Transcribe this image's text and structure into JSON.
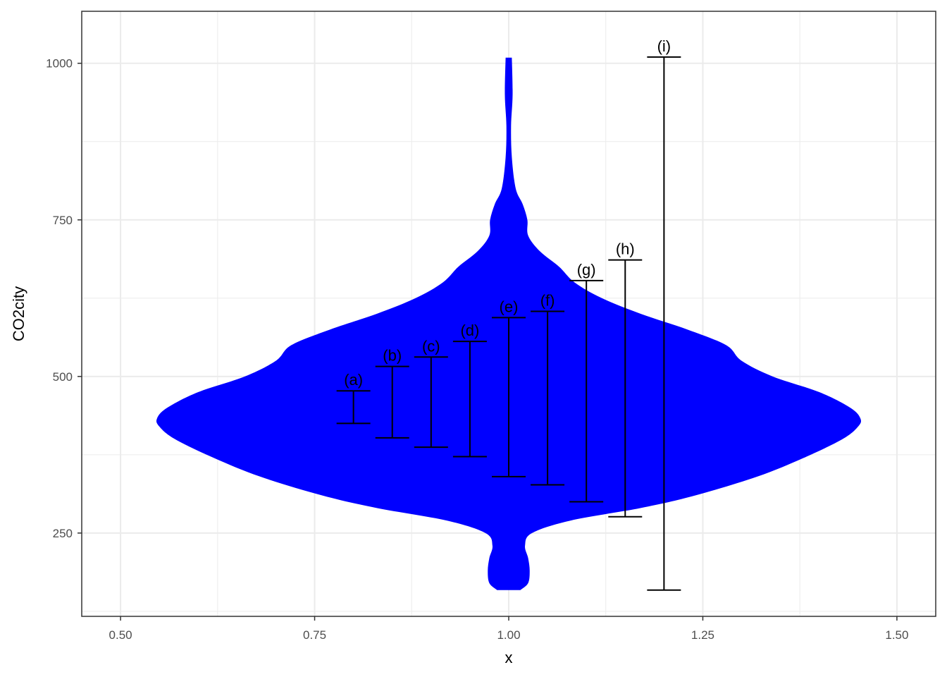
{
  "chart_data": {
    "type": "violin",
    "xlabel": "x",
    "ylabel": "CO2city",
    "xlim": [
      0.45,
      1.55
    ],
    "ylim": [
      117,
      1083
    ],
    "x_ticks": [
      "0.50",
      "0.75",
      "1.00",
      "1.25",
      "1.50"
    ],
    "y_ticks": [
      "250",
      "500",
      "750",
      "1000"
    ],
    "grid": true,
    "colors": {
      "violin": "#0000FF",
      "intervals": "#000000",
      "grid": "#EBEBEB",
      "panel_border": "#333333"
    },
    "violin": {
      "x": 1.0,
      "y_min": 159,
      "y_max": 1009,
      "density_profile": [
        {
          "y": 159,
          "half_width": 0.015
        },
        {
          "y": 170,
          "half_width": 0.025
        },
        {
          "y": 190,
          "half_width": 0.027
        },
        {
          "y": 210,
          "half_width": 0.025
        },
        {
          "y": 230,
          "half_width": 0.021
        },
        {
          "y": 250,
          "half_width": 0.03
        },
        {
          "y": 270,
          "half_width": 0.08
        },
        {
          "y": 290,
          "half_width": 0.17
        },
        {
          "y": 310,
          "half_width": 0.24
        },
        {
          "y": 340,
          "half_width": 0.32
        },
        {
          "y": 370,
          "half_width": 0.38
        },
        {
          "y": 400,
          "half_width": 0.43
        },
        {
          "y": 420,
          "half_width": 0.45
        },
        {
          "y": 433,
          "half_width": 0.453
        },
        {
          "y": 450,
          "half_width": 0.44
        },
        {
          "y": 475,
          "half_width": 0.4
        },
        {
          "y": 500,
          "half_width": 0.34
        },
        {
          "y": 525,
          "half_width": 0.3
        },
        {
          "y": 550,
          "half_width": 0.28
        },
        {
          "y": 575,
          "half_width": 0.23
        },
        {
          "y": 600,
          "half_width": 0.17
        },
        {
          "y": 625,
          "half_width": 0.12
        },
        {
          "y": 650,
          "half_width": 0.085
        },
        {
          "y": 675,
          "half_width": 0.065
        },
        {
          "y": 700,
          "half_width": 0.04
        },
        {
          "y": 725,
          "half_width": 0.025
        },
        {
          "y": 750,
          "half_width": 0.024
        },
        {
          "y": 775,
          "half_width": 0.018
        },
        {
          "y": 800,
          "half_width": 0.009
        },
        {
          "y": 850,
          "half_width": 0.004
        },
        {
          "y": 900,
          "half_width": 0.003
        },
        {
          "y": 950,
          "half_width": 0.005
        },
        {
          "y": 1009,
          "half_width": 0.004
        }
      ]
    },
    "intervals": [
      {
        "label": "(a)",
        "x": 0.8,
        "low": 425,
        "high": 477
      },
      {
        "label": "(b)",
        "x": 0.85,
        "low": 402,
        "high": 516
      },
      {
        "label": "(c)",
        "x": 0.9,
        "low": 387,
        "high": 531
      },
      {
        "label": "(d)",
        "x": 0.95,
        "low": 372,
        "high": 556
      },
      {
        "label": "(e)",
        "x": 1.0,
        "low": 340,
        "high": 594
      },
      {
        "label": "(f)",
        "x": 1.05,
        "low": 327,
        "high": 604
      },
      {
        "label": "(g)",
        "x": 1.1,
        "low": 300,
        "high": 653
      },
      {
        "label": "(h)",
        "x": 1.15,
        "low": 276,
        "high": 686
      },
      {
        "label": "(i)",
        "x": 1.2,
        "low": 159,
        "high": 1010
      }
    ]
  }
}
